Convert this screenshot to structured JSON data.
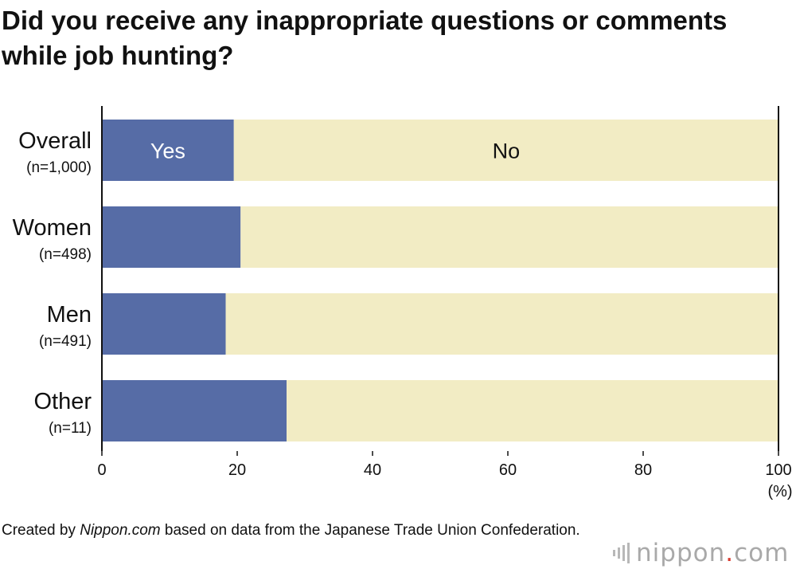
{
  "title": "Did you receive any inappropriate questions or comments while job hunting?",
  "footer": {
    "prefix": "Created by ",
    "source": "Nippon.com",
    "suffix": " based on data from the Japanese Trade Union Confederation."
  },
  "logo": {
    "word": "nippon",
    "dot": ".",
    "tld": "com"
  },
  "colors": {
    "yes": "#566ca6",
    "no": "#f2ecc4",
    "axis": "#111111"
  },
  "chart_data": {
    "type": "bar",
    "orientation": "horizontal",
    "stacked": true,
    "categories": [
      {
        "name": "Overall",
        "n": "(n=1,000)"
      },
      {
        "name": "Women",
        "n": "(n=498)"
      },
      {
        "name": "Men",
        "n": "(n=491)"
      },
      {
        "name": "Other",
        "n": "(n=11)"
      }
    ],
    "series": [
      {
        "name": "Yes",
        "values": [
          19.5,
          20.5,
          18.3,
          27.3
        ]
      },
      {
        "name": "No",
        "values": [
          80.5,
          79.5,
          81.7,
          72.7
        ]
      }
    ],
    "xlim": [
      0,
      100
    ],
    "xticks": [
      "0",
      "20",
      "40",
      "60",
      "80",
      "100"
    ],
    "xunit": "(%)",
    "grid": false
  }
}
